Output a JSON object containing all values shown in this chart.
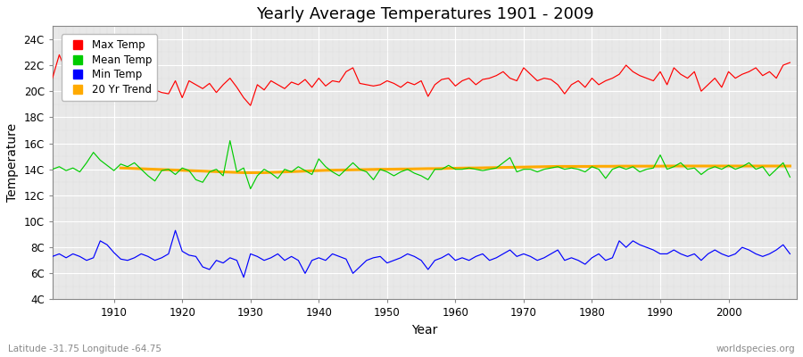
{
  "years": [
    1901,
    1902,
    1903,
    1904,
    1905,
    1906,
    1907,
    1908,
    1909,
    1910,
    1911,
    1912,
    1913,
    1914,
    1915,
    1916,
    1917,
    1918,
    1919,
    1920,
    1921,
    1922,
    1923,
    1924,
    1925,
    1926,
    1927,
    1928,
    1929,
    1930,
    1931,
    1932,
    1933,
    1934,
    1935,
    1936,
    1937,
    1938,
    1939,
    1940,
    1941,
    1942,
    1943,
    1944,
    1945,
    1946,
    1947,
    1948,
    1949,
    1950,
    1951,
    1952,
    1953,
    1954,
    1955,
    1956,
    1957,
    1958,
    1959,
    1960,
    1961,
    1962,
    1963,
    1964,
    1965,
    1966,
    1967,
    1968,
    1969,
    1970,
    1971,
    1972,
    1973,
    1974,
    1975,
    1976,
    1977,
    1978,
    1979,
    1980,
    1981,
    1982,
    1983,
    1984,
    1985,
    1986,
    1987,
    1988,
    1989,
    1990,
    1991,
    1992,
    1993,
    1994,
    1995,
    1996,
    1997,
    1998,
    1999,
    2000,
    2001,
    2002,
    2003,
    2004,
    2005,
    2006,
    2007,
    2008,
    2009
  ],
  "max_temp": [
    21.0,
    22.8,
    21.5,
    21.2,
    21.8,
    21.3,
    20.8,
    21.5,
    20.9,
    21.2,
    21.0,
    20.9,
    21.5,
    20.5,
    20.3,
    20.1,
    19.9,
    19.8,
    20.8,
    19.5,
    20.8,
    20.5,
    20.2,
    20.6,
    19.9,
    20.5,
    21.0,
    20.3,
    19.5,
    18.9,
    20.5,
    20.1,
    20.8,
    20.5,
    20.2,
    20.7,
    20.5,
    20.9,
    20.3,
    21.0,
    20.4,
    20.8,
    20.7,
    21.5,
    21.8,
    20.6,
    20.5,
    20.4,
    20.5,
    20.8,
    20.6,
    20.3,
    20.7,
    20.5,
    20.8,
    19.6,
    20.5,
    20.9,
    21.0,
    20.4,
    20.8,
    21.0,
    20.5,
    20.9,
    21.0,
    21.2,
    21.5,
    21.0,
    20.8,
    21.8,
    21.3,
    20.8,
    21.0,
    20.9,
    20.5,
    19.8,
    20.5,
    20.8,
    20.3,
    21.0,
    20.5,
    20.8,
    21.0,
    21.3,
    22.0,
    21.5,
    21.2,
    21.0,
    20.8,
    21.5,
    20.5,
    21.8,
    21.3,
    21.0,
    21.5,
    20.0,
    20.5,
    21.0,
    20.3,
    21.5,
    21.0,
    21.3,
    21.5,
    21.8,
    21.2,
    21.5,
    21.0,
    22.0,
    22.2
  ],
  "mean_temp": [
    14.0,
    14.2,
    13.9,
    14.1,
    13.8,
    14.5,
    15.3,
    14.7,
    14.3,
    13.9,
    14.4,
    14.2,
    14.5,
    14.0,
    13.5,
    13.1,
    13.9,
    14.0,
    13.6,
    14.1,
    13.9,
    13.2,
    13.0,
    13.8,
    14.0,
    13.5,
    16.2,
    13.8,
    14.1,
    12.5,
    13.5,
    14.0,
    13.7,
    13.3,
    14.0,
    13.8,
    14.2,
    13.9,
    13.6,
    14.8,
    14.2,
    13.8,
    13.5,
    14.0,
    14.5,
    14.0,
    13.8,
    13.2,
    14.0,
    13.8,
    13.5,
    13.8,
    14.0,
    13.7,
    13.5,
    13.2,
    14.0,
    14.0,
    14.3,
    14.0,
    14.0,
    14.1,
    14.0,
    13.9,
    14.0,
    14.1,
    14.5,
    14.9,
    13.8,
    14.0,
    14.0,
    13.8,
    14.0,
    14.1,
    14.2,
    14.0,
    14.1,
    14.0,
    13.8,
    14.2,
    14.0,
    13.3,
    14.0,
    14.2,
    14.0,
    14.2,
    13.8,
    14.0,
    14.1,
    15.1,
    14.0,
    14.2,
    14.5,
    14.0,
    14.1,
    13.6,
    14.0,
    14.2,
    14.0,
    14.3,
    14.0,
    14.2,
    14.5,
    14.0,
    14.2,
    13.5,
    14.0,
    14.5,
    13.4
  ],
  "min_temp": [
    7.3,
    7.5,
    7.2,
    7.5,
    7.3,
    7.0,
    7.2,
    8.5,
    8.2,
    7.6,
    7.1,
    7.0,
    7.2,
    7.5,
    7.3,
    7.0,
    7.2,
    7.5,
    9.3,
    7.7,
    7.4,
    7.3,
    6.5,
    6.3,
    7.0,
    6.8,
    7.2,
    7.0,
    5.7,
    7.5,
    7.3,
    7.0,
    7.2,
    7.5,
    7.0,
    7.3,
    7.0,
    6.0,
    7.0,
    7.2,
    7.0,
    7.5,
    7.3,
    7.1,
    6.0,
    6.5,
    7.0,
    7.2,
    7.3,
    6.8,
    7.0,
    7.2,
    7.5,
    7.3,
    7.0,
    6.3,
    7.0,
    7.2,
    7.5,
    7.0,
    7.2,
    7.0,
    7.3,
    7.5,
    7.0,
    7.2,
    7.5,
    7.8,
    7.3,
    7.5,
    7.3,
    7.0,
    7.2,
    7.5,
    7.8,
    7.0,
    7.2,
    7.0,
    6.7,
    7.2,
    7.5,
    7.0,
    7.2,
    8.5,
    8.0,
    8.5,
    8.2,
    8.0,
    7.8,
    7.5,
    7.5,
    7.8,
    7.5,
    7.3,
    7.5,
    7.0,
    7.5,
    7.8,
    7.5,
    7.3,
    7.5,
    8.0,
    7.8,
    7.5,
    7.3,
    7.5,
    7.8,
    8.2,
    7.5
  ],
  "trend_years": [
    1911,
    1912,
    1913,
    1914,
    1915,
    1916,
    1917,
    1918,
    1919,
    1920,
    1921,
    1922,
    1923,
    1924,
    1925,
    1926,
    1927,
    1928,
    1929,
    1930,
    1931,
    1932,
    1933,
    1934,
    1935,
    1936,
    1937,
    1938,
    1939,
    1940,
    1941,
    1942,
    1943,
    1944,
    1945,
    1946,
    1947,
    1948,
    1949,
    1950,
    1951,
    1952,
    1953,
    1954,
    1955,
    1956,
    1957,
    1958,
    1959,
    1960,
    1961,
    1962,
    1963,
    1964,
    1965,
    1966,
    1967,
    1968,
    1969,
    1970,
    1971,
    1972,
    1973,
    1974,
    1975,
    1976,
    1977,
    1978,
    1979,
    1980,
    1981,
    1982,
    1983,
    1984,
    1985,
    1986,
    1987,
    1988,
    1989,
    1990,
    1991,
    1992,
    1993,
    1994,
    1995,
    1996,
    1997,
    1998,
    1999,
    2000,
    2001,
    2002,
    2003,
    2004,
    2005,
    2006,
    2007,
    2008,
    2009
  ],
  "trend_vals": [
    14.1,
    14.08,
    14.06,
    14.04,
    14.02,
    14.0,
    13.98,
    13.96,
    13.94,
    13.92,
    13.9,
    13.88,
    13.86,
    13.84,
    13.82,
    13.8,
    13.78,
    13.76,
    13.74,
    13.74,
    13.74,
    13.74,
    13.76,
    13.78,
    13.8,
    13.82,
    13.84,
    13.86,
    13.88,
    13.9,
    13.92,
    13.93,
    13.94,
    13.95,
    13.96,
    13.97,
    13.98,
    13.99,
    14.0,
    14.0,
    14.01,
    14.02,
    14.02,
    14.03,
    14.04,
    14.05,
    14.05,
    14.06,
    14.07,
    14.08,
    14.09,
    14.1,
    14.1,
    14.11,
    14.12,
    14.13,
    14.14,
    14.15,
    14.16,
    14.17,
    14.18,
    14.19,
    14.2,
    14.21,
    14.22,
    14.22,
    14.22,
    14.22,
    14.22,
    14.22,
    14.23,
    14.23,
    14.23,
    14.24,
    14.24,
    14.24,
    14.24,
    14.24,
    14.24,
    14.24,
    14.25,
    14.25,
    14.25,
    14.25,
    14.25,
    14.25,
    14.25,
    14.25,
    14.25,
    14.25,
    14.25,
    14.25,
    14.25,
    14.25,
    14.25,
    14.25,
    14.25,
    14.25,
    14.25
  ],
  "title": "Yearly Average Temperatures 1901 - 2009",
  "xlabel": "Year",
  "ylabel": "Temperature",
  "ylim": [
    4,
    25
  ],
  "yticks": [
    4,
    6,
    8,
    10,
    12,
    14,
    16,
    18,
    20,
    22,
    24
  ],
  "ytick_labels": [
    "4C",
    "6C",
    "8C",
    "10C",
    "12C",
    "14C",
    "16C",
    "18C",
    "20C",
    "22C",
    "24C"
  ],
  "xlim": [
    1901,
    2010
  ],
  "max_color": "#ff0000",
  "mean_color": "#00cc00",
  "min_color": "#0000ff",
  "trend_color": "#ffaa00",
  "fig_bg_color": "#ffffff",
  "plot_bg_color": "#e8e8e8",
  "major_grid_color": "#ffffff",
  "minor_grid_color": "#d0d0d0",
  "subtitle_left": "Latitude -31.75 Longitude -64.75",
  "subtitle_right": "worldspecies.org",
  "legend_labels": [
    "Max Temp",
    "Mean Temp",
    "Min Temp",
    "20 Yr Trend"
  ]
}
